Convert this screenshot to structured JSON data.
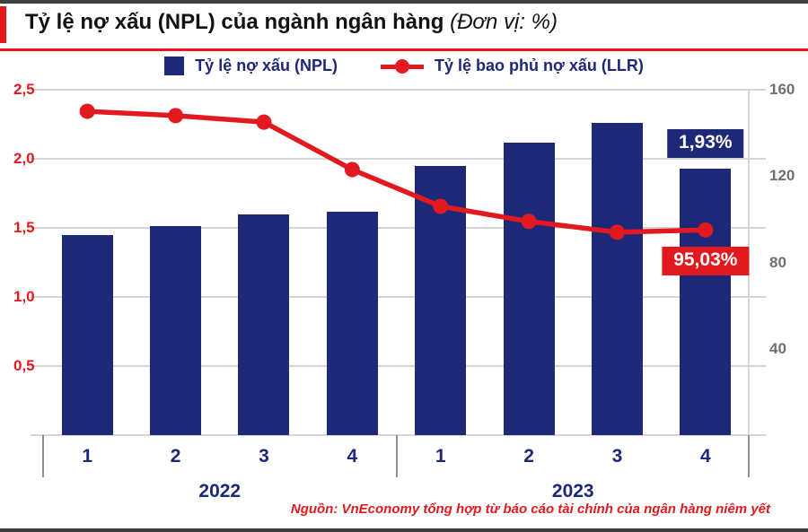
{
  "header": {
    "title": "Tỷ lệ nợ xấu (NPL) của ngành ngân hàng",
    "unit": "(Đơn vị: %)"
  },
  "legend": {
    "npl": "Tỷ lệ nợ xấu (NPL)",
    "llr": "Tỷ lệ bao phủ nợ xấu (LLR)"
  },
  "chart_data": {
    "type": "bar+line",
    "categories": [
      "1",
      "2",
      "3",
      "4",
      "1",
      "2",
      "3",
      "4"
    ],
    "year_groups": [
      {
        "label": "2022",
        "span": 4
      },
      {
        "label": "2023",
        "span": 4
      }
    ],
    "series": [
      {
        "name": "Tỷ lệ nợ xấu (NPL)",
        "type": "bar",
        "axis": "left",
        "values": [
          1.45,
          1.51,
          1.6,
          1.62,
          1.95,
          2.12,
          2.26,
          1.93
        ]
      },
      {
        "name": "Tỷ lệ bao phủ nợ xấu (LLR)",
        "type": "line",
        "axis": "right",
        "values": [
          150,
          148,
          145,
          123,
          106,
          99,
          94,
          95.03
        ]
      }
    ],
    "left_axis": {
      "min": 0,
      "max": 2.5,
      "tick_values": [
        2.5,
        2.0,
        1.5,
        1.0,
        0.5
      ],
      "tick_labels": [
        "2,5",
        "2,0",
        "1,5",
        "1,0",
        "0,5"
      ]
    },
    "right_axis": {
      "min": 0,
      "max": 160,
      "tick_values": [
        160,
        120,
        80,
        40
      ],
      "tick_labels": [
        "160",
        "120",
        "80",
        "40"
      ]
    },
    "annotations": [
      {
        "text": "1,93%",
        "style": "navy",
        "x_index": 7,
        "axis": "left",
        "value": 1.93,
        "placement": "above"
      },
      {
        "text": "95,03%",
        "style": "red",
        "x_index": 7,
        "axis": "right",
        "value": 95.03,
        "placement": "below"
      }
    ],
    "grid": true,
    "legend_position": "top"
  },
  "source": "Nguồn: VnEconomy tổng hợp từ báo cáo tài chính của ngân hàng niêm yết",
  "colors": {
    "navy": "#1e2878",
    "red": "#e2191f",
    "grid": "#d6d6d6",
    "axis_gray": "#6f6f6f",
    "rule_dark": "#3f3f3f"
  }
}
